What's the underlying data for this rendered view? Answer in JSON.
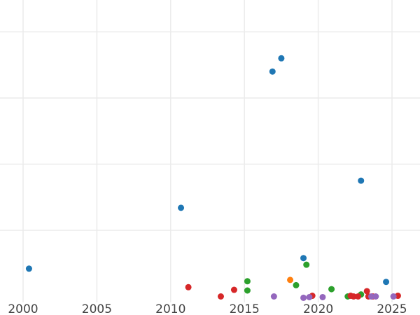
{
  "chart_data": {
    "type": "scatter",
    "title": "",
    "xlabel": "",
    "ylabel": "",
    "xlim": [
      1999.5,
      2026.8
    ],
    "ylim": [
      0,
      480
    ],
    "grid": true,
    "x_ticks": [
      2000,
      2005,
      2010,
      2015,
      2020,
      2025
    ],
    "x_tick_labels": [
      "2000",
      "2005",
      "2010",
      "2015",
      "2020",
      "2025"
    ],
    "y_gridlines": [
      100,
      200,
      300,
      400
    ],
    "series": [
      {
        "color": "#1f77b4",
        "points": [
          {
            "x": 2000.4,
            "y": 42
          },
          {
            "x": 2010.7,
            "y": 134
          },
          {
            "x": 2016.9,
            "y": 340
          },
          {
            "x": 2017.5,
            "y": 360
          },
          {
            "x": 2019.0,
            "y": 58
          },
          {
            "x": 2022.9,
            "y": 175
          },
          {
            "x": 2024.6,
            "y": 22
          }
        ]
      },
      {
        "color": "#ff7f0e",
        "points": [
          {
            "x": 2018.1,
            "y": 25
          }
        ]
      },
      {
        "color": "#2ca02c",
        "points": [
          {
            "x": 2015.2,
            "y": 23
          },
          {
            "x": 2015.2,
            "y": 9
          },
          {
            "x": 2018.5,
            "y": 17
          },
          {
            "x": 2019.2,
            "y": 48
          },
          {
            "x": 2020.9,
            "y": 11
          },
          {
            "x": 2022.0,
            "y": 0
          },
          {
            "x": 2022.9,
            "y": 3
          }
        ]
      },
      {
        "color": "#d62728",
        "points": [
          {
            "x": 2011.2,
            "y": 14
          },
          {
            "x": 2013.4,
            "y": 0
          },
          {
            "x": 2014.3,
            "y": 10
          },
          {
            "x": 2019.6,
            "y": 1
          },
          {
            "x": 2022.2,
            "y": 1
          },
          {
            "x": 2022.4,
            "y": 0
          },
          {
            "x": 2022.7,
            "y": 0
          },
          {
            "x": 2023.3,
            "y": 8
          },
          {
            "x": 2023.4,
            "y": 0
          },
          {
            "x": 2023.7,
            "y": 0
          },
          {
            "x": 2025.4,
            "y": 1
          }
        ]
      },
      {
        "color": "#9467bd",
        "points": [
          {
            "x": 2017.0,
            "y": 0
          },
          {
            "x": 2019.0,
            "y": -2
          },
          {
            "x": 2019.4,
            "y": -1
          },
          {
            "x": 2020.3,
            "y": -1
          },
          {
            "x": 2023.6,
            "y": 0
          },
          {
            "x": 2023.9,
            "y": 0
          },
          {
            "x": 2025.1,
            "y": 0
          }
        ]
      }
    ]
  }
}
